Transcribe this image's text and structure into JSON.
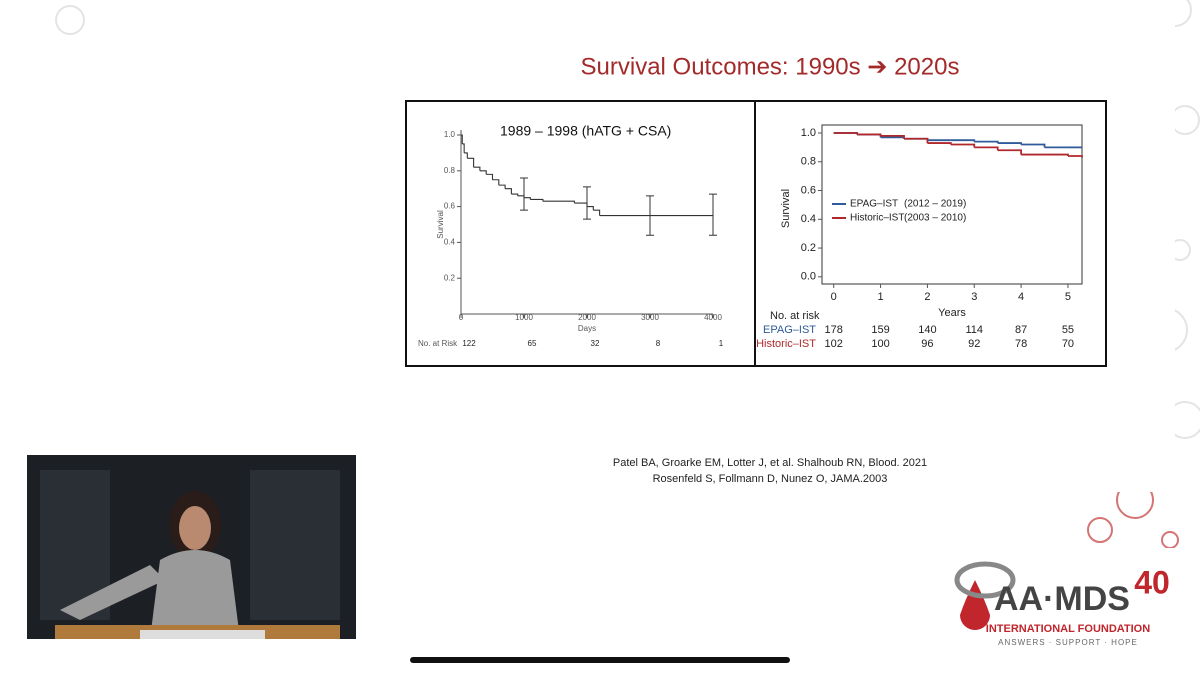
{
  "slide": {
    "title": "Survival Outcomes: 1990s ➔ 2020s",
    "citations": [
      "Patel BA, Groarke EM, Lotter J, et al. Shalhoub RN, Blood. 2021",
      "Rosenfeld S, Follmann D, Nunez O, JAMA.2003"
    ],
    "logo": {
      "name": "AA·MDS",
      "anniversary": "40",
      "subtitle": "INTERNATIONAL FOUNDATION",
      "tagline": "ANSWERS · SUPPORT · HOPE"
    }
  },
  "chart_data": [
    {
      "type": "line",
      "step": true,
      "annotation": "1989 – 1998 (hATG + CSA)",
      "x_label": "Days",
      "y_label": "Survival",
      "xlim": [
        0,
        4000
      ],
      "xticks": [
        0,
        1000,
        2000,
        3000,
        4000
      ],
      "ylim": [
        0,
        1
      ],
      "yticks": [
        0.2,
        0.4,
        0.6,
        0.8,
        {
          "value": 1,
          "label": "1.0"
        }
      ],
      "series": [
        {
          "color": "#333333",
          "x": [
            0,
            20,
            50,
            100,
            200,
            300,
            400,
            500,
            600,
            700,
            800,
            900,
            1000,
            1100,
            1300,
            1800,
            2000,
            2100,
            2200,
            4000
          ],
          "values": [
            1,
            0.95,
            0.9,
            0.87,
            0.82,
            0.8,
            0.78,
            0.75,
            0.72,
            0.7,
            0.67,
            0.66,
            0.65,
            0.64,
            0.63,
            0.62,
            0.6,
            0.58,
            0.55,
            0.55
          ]
        }
      ],
      "error_bars": [
        {
          "x": 1000,
          "low": 0.58,
          "high": 0.76
        },
        {
          "x": 2000,
          "low": 0.53,
          "high": 0.71
        },
        {
          "x": 3000,
          "low": 0.44,
          "high": 0.66
        },
        {
          "x": 4000,
          "low": 0.44,
          "high": 0.67
        }
      ],
      "risk_table": {
        "label": "No. at Risk",
        "rows": [
          {
            "color": "#333333",
            "values": [
              122,
              65,
              32,
              8,
              1
            ]
          }
        ]
      }
    },
    {
      "type": "line",
      "step": true,
      "x_label": "Years",
      "y_label": "Survival",
      "xlim": [
        -0.25,
        5.3
      ],
      "xticks": [
        0,
        1,
        2,
        3,
        4,
        5
      ],
      "ylim": [
        -0.05,
        1
      ],
      "yticks": [
        {
          "value": 0,
          "label": "0.0"
        },
        0.2,
        0.4,
        0.6,
        0.8,
        {
          "value": 1,
          "label": "1.0"
        }
      ],
      "series": [
        {
          "name": "EPAG–IST",
          "period": "(2012 – 2019)",
          "color": "#2f5b9a",
          "x": [
            0,
            0.5,
            1,
            1.5,
            2,
            2.5,
            3,
            3.5,
            4,
            4.5,
            5,
            5.3
          ],
          "values": [
            1,
            0.99,
            0.97,
            0.96,
            0.95,
            0.95,
            0.94,
            0.93,
            0.92,
            0.9,
            0.9,
            0.9
          ]
        },
        {
          "name": "Historic–IST",
          "period": "(2003 – 2010)",
          "color": "#b0282c",
          "x": [
            0,
            0.5,
            1,
            1.5,
            2,
            2.5,
            3,
            3.5,
            4,
            4.5,
            5,
            5.3
          ],
          "values": [
            1,
            0.99,
            0.98,
            0.96,
            0.93,
            0.92,
            0.9,
            0.88,
            0.85,
            0.85,
            0.84,
            0.83
          ]
        }
      ],
      "risk_table": {
        "label": "No. at risk",
        "rows": [
          {
            "name": "EPAG–IST",
            "color": "#2f5b9a",
            "values": [
              178,
              159,
              140,
              114,
              87,
              55
            ]
          },
          {
            "name": "Historic–IST",
            "color": "#b0282c",
            "values": [
              102,
              100,
              96,
              92,
              78,
              70
            ]
          }
        ]
      }
    }
  ]
}
